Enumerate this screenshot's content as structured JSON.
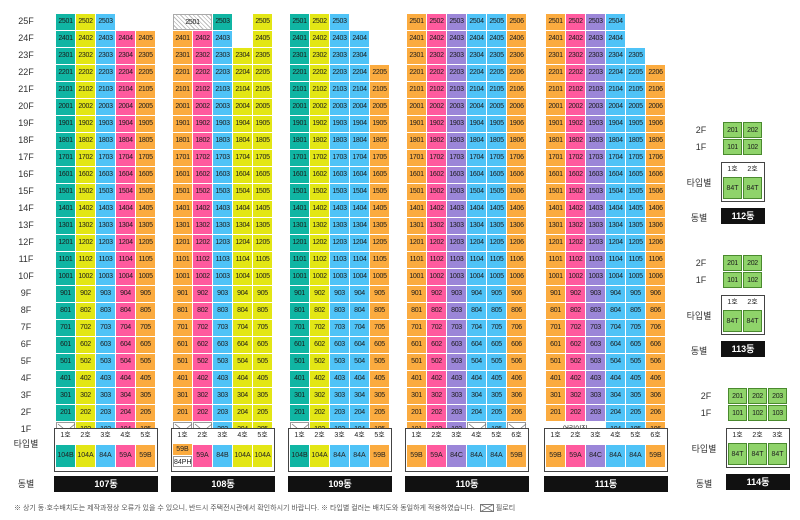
{
  "colors": {
    "teal": "#10b5a3",
    "yellow": "#e3e615",
    "blue": "#4fc3f7",
    "pink": "#ff5a9e",
    "orange": "#fbab3f",
    "violet": "#9b86d8",
    "green": "#8fd36a",
    "white": "#ffffff"
  },
  "floor_labels": [
    "25F",
    "24F",
    "23F",
    "22F",
    "21F",
    "20F",
    "19F",
    "18F",
    "17F",
    "16F",
    "15F",
    "14F",
    "13F",
    "12F",
    "11F",
    "10F",
    "9F",
    "8F",
    "7F",
    "6F",
    "5F",
    "4F",
    "3F",
    "2F",
    "1F"
  ],
  "row_labels": {
    "type": "타입별",
    "dong": "동별"
  },
  "buildings": [
    {
      "name": "107동",
      "units": [
        "1호",
        "2호",
        "3호",
        "4호",
        "5호"
      ],
      "types": [
        "104B",
        "104A",
        "84A",
        "59A",
        "59B"
      ],
      "colors": [
        "teal",
        "yellow",
        "blue",
        "pink",
        "orange"
      ],
      "top_floor": [
        25,
        25,
        25,
        24,
        24
      ],
      "first_floor": [
        "P",
        "102",
        "103",
        "104",
        "105"
      ]
    },
    {
      "name": "108동",
      "units": [
        "1호",
        "2호",
        "3호",
        "4호",
        "5호"
      ],
      "types": [
        "59B",
        "59A",
        "84B",
        "104A",
        "104A"
      ],
      "type_extra": "84PH",
      "colors": [
        "orange",
        "pink",
        "blue",
        "yellow",
        "yellow"
      ],
      "top_floor": [
        25,
        24,
        25,
        23,
        25
      ],
      "hatch_25": [
        0,
        1
      ],
      "first_floor": [
        "P",
        "P",
        "203",
        "204",
        "205"
      ]
    },
    {
      "name": "109동",
      "units": [
        "1호",
        "2호",
        "3호",
        "4호",
        "5호"
      ],
      "types": [
        "104B",
        "104A",
        "84A",
        "84A",
        "59B"
      ],
      "colors": [
        "teal",
        "yellow",
        "blue",
        "blue",
        "orange"
      ],
      "top_floor": [
        25,
        25,
        25,
        24,
        22
      ],
      "first_floor": [
        "P",
        "102",
        "103",
        "104",
        "105"
      ]
    },
    {
      "name": "110동",
      "units": [
        "1호",
        "2호",
        "3호",
        "4호",
        "5호",
        "6호"
      ],
      "types": [
        "59B",
        "59A",
        "84C",
        "84A",
        "84A",
        "59B"
      ],
      "colors": [
        "orange",
        "pink",
        "violet",
        "blue",
        "blue",
        "orange"
      ],
      "top_floor": [
        25,
        25,
        25,
        25,
        25,
        25
      ],
      "first_floor": [
        "101",
        "102",
        "103",
        "P",
        "105",
        "P"
      ]
    },
    {
      "name": "111동",
      "units": [
        "1호",
        "2호",
        "3호",
        "4호",
        "5호",
        "6호"
      ],
      "types": [
        "59B",
        "59A",
        "84C",
        "84A",
        "84A",
        "59B"
      ],
      "colors": [
        "orange",
        "pink",
        "violet",
        "blue",
        "blue",
        "orange"
      ],
      "top_floor": [
        25,
        25,
        25,
        25,
        23,
        22
      ],
      "first_floor": [
        "어린이집",
        "",
        "",
        "104",
        "105",
        "106"
      ]
    }
  ],
  "small_buildings": [
    {
      "name": "112동",
      "floors": [
        [
          "201",
          "202"
        ],
        [
          "101",
          "102"
        ]
      ],
      "units": [
        "1호",
        "2호"
      ],
      "types": [
        "84T",
        "84T"
      ]
    },
    {
      "name": "113동",
      "floors": [
        [
          "201",
          "202"
        ],
        [
          "101",
          "102"
        ]
      ],
      "units": [
        "1호",
        "2호"
      ],
      "types": [
        "84T",
        "84T"
      ]
    },
    {
      "name": "114동",
      "floors": [
        [
          "201",
          "202",
          "203"
        ],
        [
          "101",
          "102",
          "103"
        ]
      ],
      "units": [
        "1호",
        "2호",
        "3호"
      ],
      "types": [
        "84T",
        "84T",
        "84T"
      ]
    }
  ],
  "small_floor_labels": [
    "2F",
    "1F"
  ],
  "footnote": "※ 상기 동·호수배치도는 제작과정상 오류가 있을 수 있으니, 반드시 주택전시관에서 확인하시기 바랍니다.  ※ 타입별 컬러는 배치도와 동일하게 적용하였습니다.",
  "legend_label": "필로티"
}
